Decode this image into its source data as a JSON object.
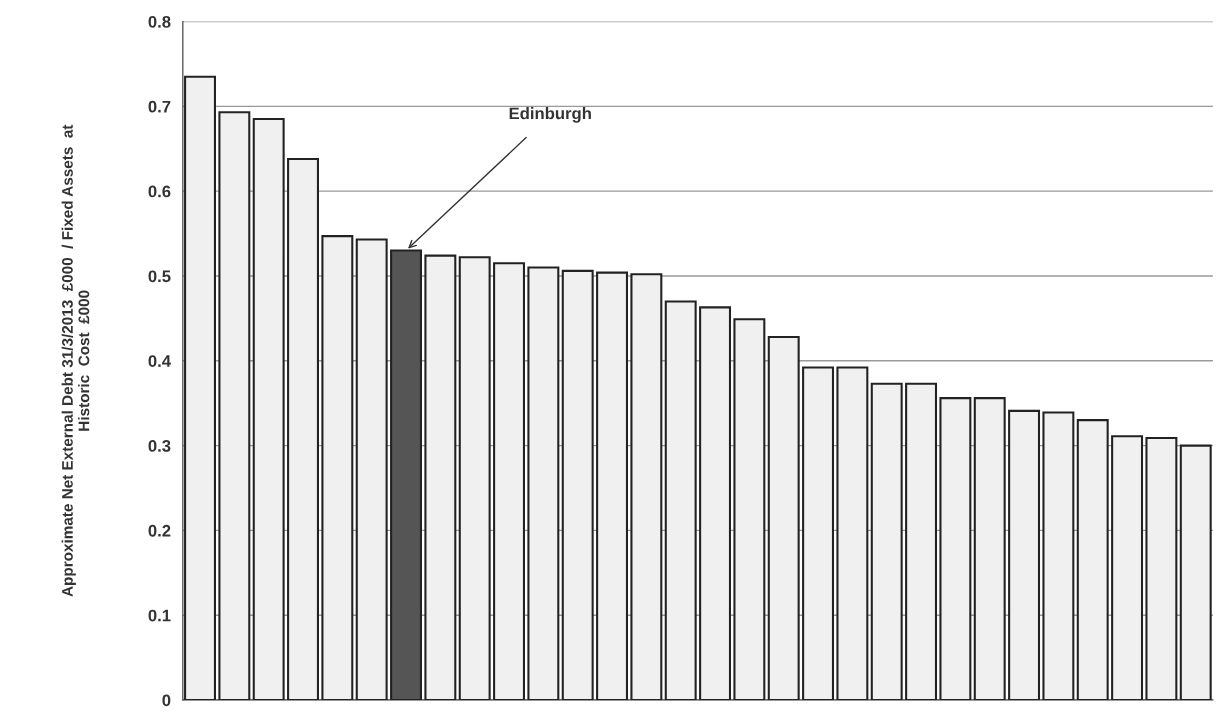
{
  "chart_data": {
    "type": "bar",
    "ylabel": "Approximate Net External Debt 31/3/2013  £000  / Fixed Assets  at\nHistoric  Cost  £000",
    "categories": [
      null,
      null,
      null,
      null,
      null,
      null,
      null,
      null,
      null,
      null,
      null,
      null,
      null,
      null,
      null,
      null,
      null,
      null,
      null,
      null,
      null,
      null,
      null,
      null,
      null,
      null,
      null,
      null,
      null,
      null
    ],
    "values": [
      0.735,
      0.693,
      0.685,
      0.638,
      0.547,
      0.543,
      0.53,
      0.524,
      0.522,
      0.515,
      0.51,
      0.506,
      0.504,
      0.502,
      0.47,
      0.463,
      0.449,
      0.428,
      0.392,
      0.392,
      0.373,
      0.373,
      0.356,
      0.356,
      0.341,
      0.339,
      0.33,
      0.311,
      0.309,
      0.3
    ],
    "colors": [
      "#f0f0f0",
      "#f0f0f0",
      "#f0f0f0",
      "#f0f0f0",
      "#f0f0f0",
      "#f0f0f0",
      "#555555",
      "#f0f0f0",
      "#f0f0f0",
      "#f0f0f0",
      "#f0f0f0",
      "#f0f0f0",
      "#f0f0f0",
      "#f0f0f0",
      "#f0f0f0",
      "#f0f0f0",
      "#f0f0f0",
      "#f0f0f0",
      "#f0f0f0",
      "#f0f0f0",
      "#f0f0f0",
      "#f0f0f0",
      "#f0f0f0",
      "#f0f0f0",
      "#f0f0f0",
      "#f0f0f0",
      "#f0f0f0",
      "#f0f0f0",
      "#f0f0f0",
      "#f0f0f0"
    ],
    "ylim": [
      0,
      0.8
    ],
    "yticks": [
      0,
      0.1,
      0.2,
      0.3,
      0.4,
      0.5,
      0.6,
      0.7,
      0.8
    ],
    "grid": "y",
    "annotations": [
      "Edinburgh"
    ]
  }
}
